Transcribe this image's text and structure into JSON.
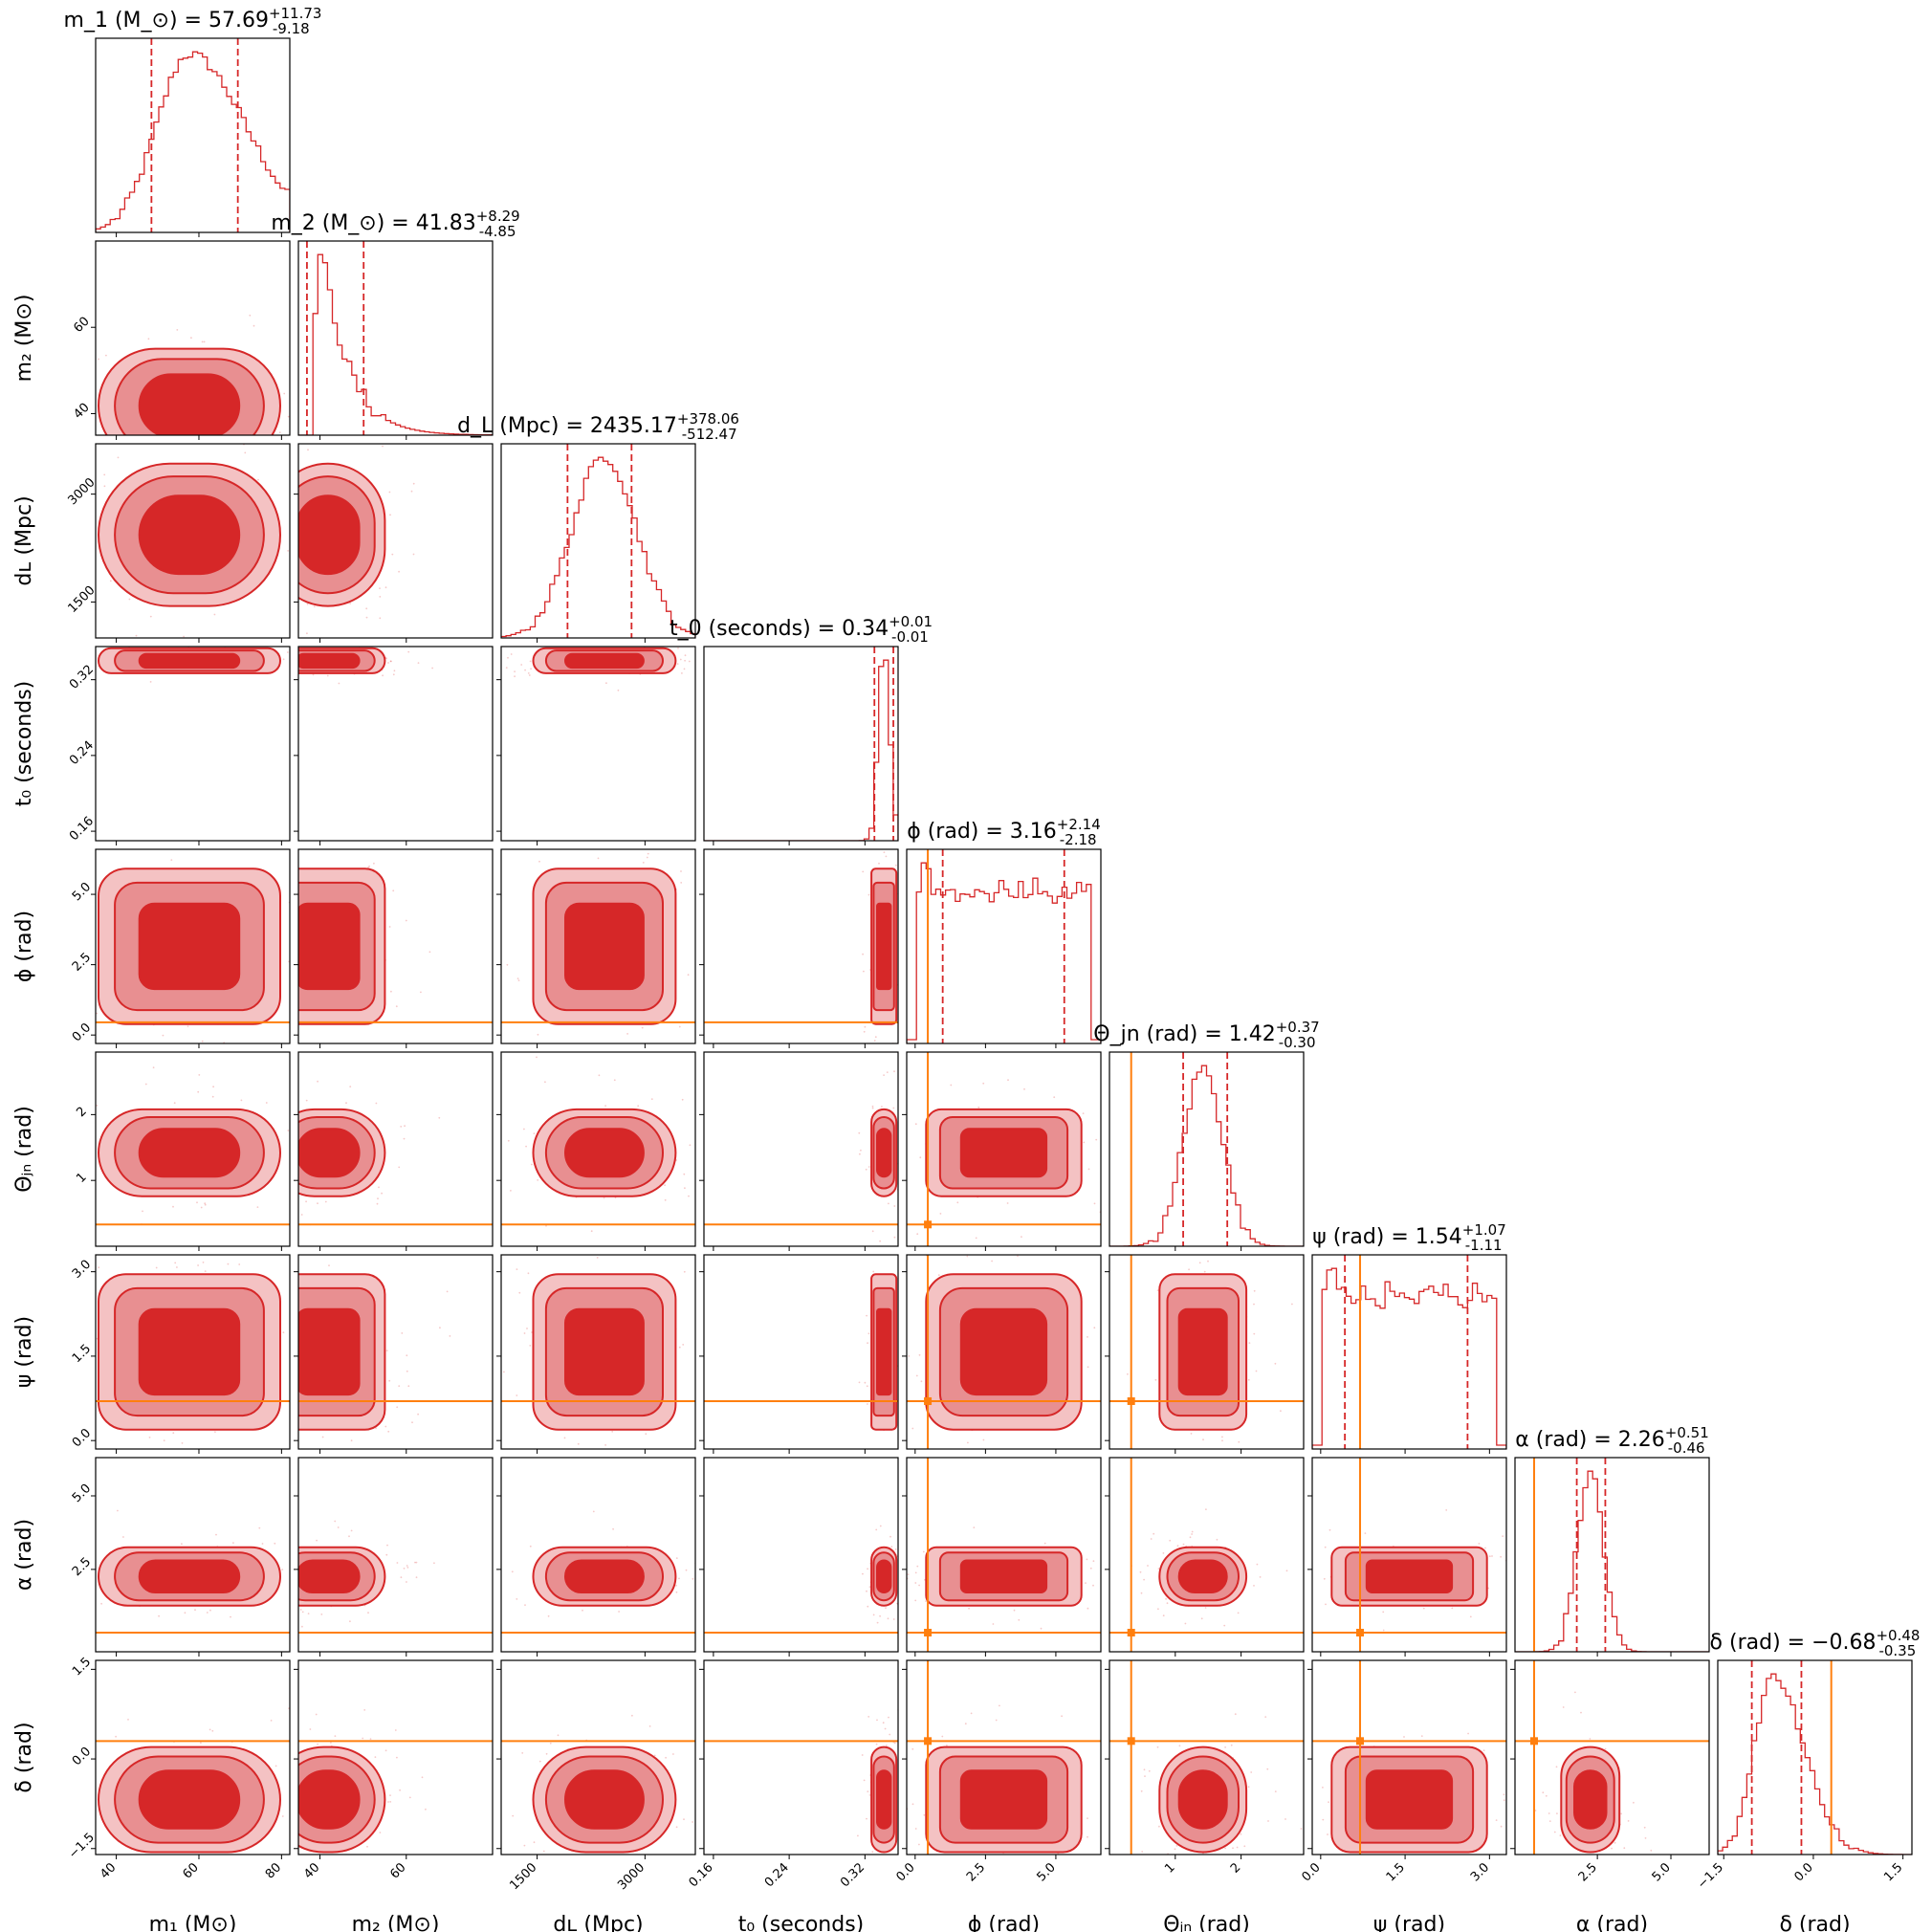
{
  "chart_data": {
    "type": "corner",
    "colors": {
      "posterior": "#d62728",
      "injection": "#ff7f0e"
    },
    "parameters": [
      {
        "key": "m1",
        "label": "m_1 (M_⊙)",
        "title": "m_1 (M_⊙) = 57.69^{+11.73}_{-9.18}",
        "median": 57.69,
        "plus": 11.73,
        "minus": 9.18,
        "range": [
          35,
          82
        ],
        "ticks": [
          "40",
          "60",
          "80"
        ],
        "tick_values": [
          40,
          60,
          80
        ],
        "injection": null,
        "marginal": "skewed",
        "spread": 10
      },
      {
        "key": "m2",
        "label": "m_2 (M_⊙)",
        "title": "m_2 (M_⊙) = 41.83^{+8.29}_{-4.85}",
        "median": 41.83,
        "plus": 8.29,
        "minus": 4.85,
        "range": [
          35,
          80
        ],
        "ticks": [
          "40",
          "60"
        ],
        "tick_values": [
          40,
          60
        ],
        "injection": null,
        "marginal": "left",
        "spread": 6
      },
      {
        "key": "dL",
        "label": "d_L (Mpc)",
        "title": "d_L (Mpc) = 2435.17^{+378.06}_{-512.47}",
        "median": 2435.17,
        "plus": 378.06,
        "minus": 512.47,
        "range": [
          1000,
          3700
        ],
        "ticks": [
          "1500",
          "3000"
        ],
        "tick_values": [
          1500,
          3000
        ],
        "injection": null,
        "marginal": "gauss",
        "spread": 450
      },
      {
        "key": "t0",
        "label": "t_0 (seconds)",
        "title": "t_0 (seconds) = 0.34^{+0.01}_{-0.01}",
        "median": 0.34,
        "plus": 0.01,
        "minus": 0.01,
        "range": [
          0.15,
          0.355
        ],
        "ticks": [
          "0.16",
          "0.24",
          "0.32"
        ],
        "tick_values": [
          0.16,
          0.24,
          0.32
        ],
        "injection": null,
        "marginal": "narrow",
        "spread": 0.006
      },
      {
        "key": "phi",
        "label": "ϕ (rad)",
        "title": "ϕ (rad) = 3.16^{+2.14}_{-2.18}",
        "median": 3.16,
        "plus": 2.14,
        "minus": 2.18,
        "range": [
          -0.3,
          6.6
        ],
        "ticks": [
          "0.0",
          "2.5",
          "5.0"
        ],
        "tick_values": [
          0,
          2.5,
          5
        ],
        "injection": 0.45,
        "marginal": "uniform",
        "spread": 2
      },
      {
        "key": "thetajn",
        "label": "Θ_jn (rad)",
        "title": "Θ_jn (rad) = 1.42^{+0.37}_{-0.30}",
        "median": 1.42,
        "plus": 0.37,
        "minus": 0.3,
        "range": [
          0,
          2.95
        ],
        "ticks": [
          "1",
          "2"
        ],
        "tick_values": [
          1,
          2
        ],
        "injection": 0.33,
        "marginal": "gauss",
        "spread": 0.3
      },
      {
        "key": "psi",
        "label": "ψ (rad)",
        "title": "ψ (rad) = 1.54^{+1.07}_{-1.11}",
        "median": 1.54,
        "plus": 1.07,
        "minus": 1.11,
        "range": [
          -0.15,
          3.3
        ],
        "ticks": [
          "0.0",
          "1.5",
          "3.0"
        ],
        "tick_values": [
          0,
          1.5,
          3
        ],
        "injection": 0.7,
        "marginal": "uniform",
        "spread": 1
      },
      {
        "key": "alpha",
        "label": "α (rad)",
        "title": "α (rad) = 2.26^{+0.51}_{-0.46}",
        "median": 2.26,
        "plus": 0.51,
        "minus": 0.46,
        "range": [
          -0.3,
          6.3
        ],
        "ticks": [
          "2.5",
          "5.0"
        ],
        "tick_values": [
          2.5,
          5
        ],
        "injection": 0.35,
        "marginal": "gauss",
        "spread": 0.45
      },
      {
        "key": "delta",
        "label": "δ (rad)",
        "title": "δ (rad) = −0.68^{+0.48}_{-0.35}",
        "median": -0.68,
        "plus": 0.48,
        "minus": 0.35,
        "range": [
          -1.6,
          1.65
        ],
        "ticks": [
          "−1.5",
          "0.0",
          "1.5"
        ],
        "tick_values": [
          -1.5,
          0,
          1.5
        ],
        "injection": 0.3,
        "marginal": "skewed",
        "spread": 0.4
      }
    ],
    "contour_levels": [
      "1-sigma (dark)",
      "2-sigma (light)"
    ]
  }
}
